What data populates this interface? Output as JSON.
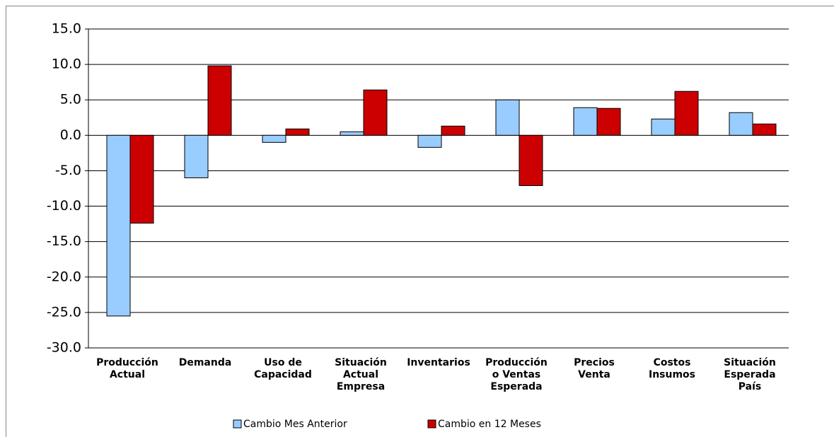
{
  "chart_data": {
    "type": "bar",
    "categories": [
      "Producción\nActual",
      "Demanda",
      "Uso de\nCapacidad",
      "Situación\nActual\nEmpresa",
      "Inventarios",
      "Producción\no Ventas\nEsperada",
      "Precios\nVenta",
      "Costos\nInsumos",
      "Situación\nEsperada\nPaís"
    ],
    "series": [
      {
        "name": "Cambio Mes Anterior",
        "color": "#99ccff",
        "values": [
          -25.5,
          -6.0,
          -1.0,
          0.5,
          -1.7,
          5.0,
          3.9,
          2.3,
          3.2
        ]
      },
      {
        "name": "Cambio en 12 Meses",
        "color": "#cc0000",
        "values": [
          -12.4,
          9.8,
          0.9,
          6.4,
          1.3,
          -7.1,
          3.8,
          6.2,
          1.6
        ]
      }
    ],
    "ylim": [
      -30,
      15
    ],
    "yticks": [
      {
        "value": -30,
        "label": "-30.0"
      },
      {
        "value": -25,
        "label": "-25.0"
      },
      {
        "value": -20,
        "label": "-20.0"
      },
      {
        "value": -15,
        "label": "-15.0"
      },
      {
        "value": -10,
        "label": "-10.0"
      },
      {
        "value": -5,
        "label": "-5.0"
      },
      {
        "value": 0,
        "label": "0.0"
      },
      {
        "value": 5,
        "label": "5.0"
      },
      {
        "value": 10,
        "label": "10.0"
      },
      {
        "value": 15,
        "label": "15.0"
      }
    ],
    "grid": true,
    "legend": "bottom"
  }
}
